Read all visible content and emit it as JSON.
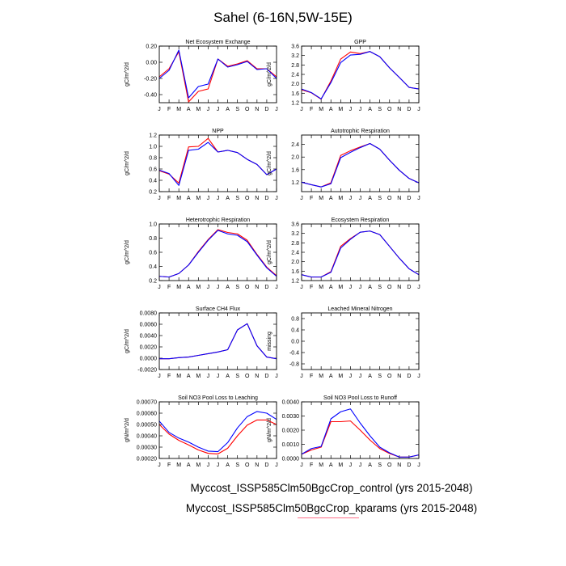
{
  "title": "Sahel (6-16N,5W-15E)",
  "legend": [
    {
      "label": "Myccost_ISSP585Clm50BgcCrop_control (yrs 2015-2048)",
      "color": "#0000ff"
    },
    {
      "label": "Myccost_ISSP585Clm50BgcCrop_kparams (yrs 2015-2048)",
      "color": "#ff0000"
    }
  ],
  "colors": {
    "control": "#0000ff",
    "kparams": "#ff0000"
  },
  "chart_data": [
    {
      "type": "line",
      "title": "Net Ecosystem Exchange",
      "ylabel": "gC/m^2/d",
      "x": [
        "J",
        "F",
        "M",
        "A",
        "M",
        "J",
        "J",
        "A",
        "S",
        "O",
        "N",
        "D",
        "J"
      ],
      "ylim": [
        -0.5,
        0.2
      ],
      "yticks": [
        "0.20",
        "0.00",
        "-0.20",
        "-0.40"
      ],
      "ytick_values": [
        0.2,
        0.0,
        -0.2,
        -0.4
      ],
      "series": [
        {
          "values": [
            -0.2,
            -0.1,
            0.15,
            -0.44,
            -0.3,
            -0.27,
            0.04,
            -0.06,
            -0.03,
            0.01,
            -0.09,
            -0.08,
            -0.2
          ]
        },
        {
          "values": [
            -0.18,
            -0.08,
            0.13,
            -0.49,
            -0.36,
            -0.33,
            0.04,
            -0.05,
            -0.02,
            0.02,
            -0.08,
            -0.08,
            -0.18
          ]
        }
      ]
    },
    {
      "type": "line",
      "title": "GPP",
      "ylabel": "gC/m^2/d",
      "x": [
        "J",
        "F",
        "M",
        "A",
        "M",
        "J",
        "J",
        "A",
        "S",
        "O",
        "N",
        "D",
        "J"
      ],
      "ylim": [
        1.2,
        3.6
      ],
      "yticks": [
        "3.6",
        "3.2",
        "2.8",
        "2.4",
        "2.0",
        "1.6",
        "1.2"
      ],
      "ytick_values": [
        3.6,
        3.2,
        2.8,
        2.4,
        2.0,
        1.6,
        1.2
      ],
      "series": [
        {
          "values": [
            1.78,
            1.63,
            1.36,
            2.05,
            2.9,
            3.22,
            3.25,
            3.37,
            3.15,
            2.68,
            2.27,
            1.85,
            1.78
          ]
        },
        {
          "values": [
            1.75,
            1.62,
            1.35,
            2.12,
            3.05,
            3.35,
            3.28,
            3.37,
            3.15,
            2.68,
            2.27,
            1.85,
            1.78
          ]
        }
      ]
    },
    {
      "type": "line",
      "title": "NPP",
      "ylabel": "gC/m^2/d",
      "x": [
        "J",
        "F",
        "M",
        "A",
        "M",
        "J",
        "J",
        "A",
        "S",
        "O",
        "N",
        "D",
        "J"
      ],
      "ylim": [
        0.2,
        1.2
      ],
      "yticks": [
        "1.2",
        "1.0",
        "0.8",
        "0.6",
        "0.4",
        "0.2"
      ],
      "ytick_values": [
        1.2,
        1.0,
        0.8,
        0.6,
        0.4,
        0.2
      ],
      "series": [
        {
          "values": [
            0.58,
            0.52,
            0.31,
            0.93,
            0.95,
            1.07,
            0.9,
            0.93,
            0.89,
            0.77,
            0.68,
            0.5,
            0.6
          ]
        },
        {
          "values": [
            0.57,
            0.51,
            0.35,
            0.99,
            1.0,
            1.14,
            0.9,
            0.93,
            0.89,
            0.77,
            0.68,
            0.5,
            0.6
          ]
        }
      ]
    },
    {
      "type": "line",
      "title": "Autotrophic Respiration",
      "ylabel": "gC/m^2/d",
      "x": [
        "J",
        "F",
        "M",
        "A",
        "M",
        "J",
        "J",
        "A",
        "S",
        "O",
        "N",
        "D",
        "J"
      ],
      "ylim": [
        0.9,
        2.7
      ],
      "yticks": [
        "2.4",
        "2.0",
        "1.6",
        "1.2"
      ],
      "ytick_values": [
        2.4,
        2.0,
        1.6,
        1.2
      ],
      "series": [
        {
          "values": [
            1.2,
            1.12,
            1.05,
            1.15,
            1.98,
            2.15,
            2.3,
            2.43,
            2.25,
            1.9,
            1.58,
            1.32,
            1.18
          ]
        },
        {
          "values": [
            1.2,
            1.12,
            1.05,
            1.18,
            2.05,
            2.2,
            2.32,
            2.43,
            2.25,
            1.9,
            1.58,
            1.32,
            1.18
          ]
        }
      ]
    },
    {
      "type": "line",
      "title": "Heterotrophic Respiration",
      "ylabel": "gC/m^2/d",
      "x": [
        "J",
        "F",
        "M",
        "A",
        "M",
        "J",
        "J",
        "A",
        "S",
        "O",
        "N",
        "D",
        "J"
      ],
      "ylim": [
        0.2,
        1.0
      ],
      "yticks": [
        "1.0",
        "0.8",
        "0.6",
        "0.4",
        "0.2"
      ],
      "ytick_values": [
        1.0,
        0.8,
        0.6,
        0.4,
        0.2
      ],
      "series": [
        {
          "values": [
            0.26,
            0.25,
            0.3,
            0.42,
            0.6,
            0.77,
            0.91,
            0.86,
            0.84,
            0.75,
            0.56,
            0.38,
            0.26
          ]
        },
        {
          "values": [
            0.26,
            0.25,
            0.3,
            0.42,
            0.61,
            0.78,
            0.92,
            0.88,
            0.86,
            0.77,
            0.57,
            0.39,
            0.27
          ]
        }
      ]
    },
    {
      "type": "line",
      "title": "Ecosystem Respiration",
      "ylabel": "gC/m^2/d",
      "x": [
        "J",
        "F",
        "M",
        "A",
        "M",
        "J",
        "J",
        "A",
        "S",
        "O",
        "N",
        "D",
        "J"
      ],
      "ylim": [
        1.2,
        3.6
      ],
      "yticks": [
        "3.6",
        "3.2",
        "2.8",
        "2.4",
        "2.0",
        "1.6",
        "1.2"
      ],
      "ytick_values": [
        3.6,
        3.2,
        2.8,
        2.4,
        2.0,
        1.6,
        1.2
      ],
      "series": [
        {
          "values": [
            1.45,
            1.35,
            1.35,
            1.55,
            2.58,
            2.95,
            3.25,
            3.3,
            3.15,
            2.65,
            2.15,
            1.7,
            1.45
          ]
        },
        {
          "values": [
            1.45,
            1.35,
            1.35,
            1.58,
            2.65,
            2.98,
            3.25,
            3.3,
            3.15,
            2.65,
            2.15,
            1.7,
            1.45
          ]
        }
      ]
    },
    {
      "type": "line",
      "title": "Surface CH4 Flux",
      "ylabel": "gC/m^2/d",
      "x": [
        "J",
        "F",
        "M",
        "A",
        "M",
        "J",
        "J",
        "A",
        "S",
        "O",
        "N",
        "D",
        "J"
      ],
      "ylim": [
        -0.002,
        0.008
      ],
      "yticks": [
        "0.0080",
        "0.0060",
        "0.0040",
        "0.0020",
        "0.0000",
        "-0.0020"
      ],
      "ytick_values": [
        0.008,
        0.006,
        0.004,
        0.002,
        0.0,
        -0.002
      ],
      "series": [
        {
          "values": [
            -0.0001,
            -0.0001,
            0.0001,
            0.0002,
            0.0005,
            0.0008,
            0.0011,
            0.0015,
            0.005,
            0.0061,
            0.0022,
            0.0002,
            -0.0001
          ]
        },
        {
          "values": [
            -0.0001,
            -0.0001,
            0.0001,
            0.0002,
            0.0005,
            0.0008,
            0.0011,
            0.0015,
            0.005,
            0.0061,
            0.0022,
            0.0002,
            -0.0001
          ]
        }
      ]
    },
    {
      "type": "line",
      "title": "Leached Mineral Nitrogen",
      "ylabel": "missing",
      "x": [
        "J",
        "F",
        "M",
        "A",
        "M",
        "J",
        "J",
        "A",
        "S",
        "O",
        "N",
        "D",
        "J"
      ],
      "ylim": [
        -1.0,
        1.0
      ],
      "yticks": [
        "0.8",
        "0.4",
        "0.0",
        "-0.4",
        "-0.8"
      ],
      "ytick_values": [
        0.8,
        0.4,
        0.0,
        -0.4,
        -0.8
      ],
      "series": []
    },
    {
      "type": "line",
      "title": "Soil NO3 Pool Loss to Leaching",
      "ylabel": "gN/m^2/d",
      "x": [
        "J",
        "F",
        "M",
        "A",
        "M",
        "J",
        "J",
        "A",
        "S",
        "O",
        "N",
        "D",
        "J"
      ],
      "ylim": [
        0.0002,
        0.0007
      ],
      "yticks": [
        "0.00070",
        "0.00060",
        "0.00050",
        "0.00040",
        "0.00030",
        "0.00020"
      ],
      "ytick_values": [
        0.0007,
        0.0006,
        0.0005,
        0.0004,
        0.0003,
        0.0002
      ],
      "series": [
        {
          "values": [
            0.00053,
            0.00043,
            0.00038,
            0.000345,
            0.0003,
            0.000265,
            0.00026,
            0.00034,
            0.00047,
            0.00057,
            0.000615,
            0.0006,
            0.000545
          ]
        },
        {
          "values": [
            0.0005,
            0.000415,
            0.00036,
            0.00032,
            0.000275,
            0.000245,
            0.00024,
            0.00029,
            0.0004,
            0.000495,
            0.00054,
            0.00054,
            0.0005
          ]
        }
      ]
    },
    {
      "type": "line",
      "title": "Soil NO3 Pool Loss to Runoff",
      "ylabel": "gN/m^2/d",
      "x": [
        "J",
        "F",
        "M",
        "A",
        "M",
        "J",
        "J",
        "A",
        "S",
        "O",
        "N",
        "D",
        "J"
      ],
      "ylim": [
        0.0,
        0.004
      ],
      "yticks": [
        "0.0040",
        "0.0030",
        "0.0020",
        "0.0010",
        "0.0000"
      ],
      "ytick_values": [
        0.004,
        0.003,
        0.002,
        0.001,
        0.0
      ],
      "series": [
        {
          "values": [
            0.0003,
            0.0007,
            0.00085,
            0.0028,
            0.0033,
            0.0035,
            0.0025,
            0.0016,
            0.0008,
            0.0004,
            0.0001,
            0.0001,
            0.00025
          ]
        },
        {
          "values": [
            0.0003,
            0.0006,
            0.0008,
            0.0026,
            0.0026,
            0.00265,
            0.002,
            0.0013,
            0.0007,
            0.00035,
            0.0001,
            0.0001,
            0.00025
          ]
        }
      ]
    }
  ]
}
